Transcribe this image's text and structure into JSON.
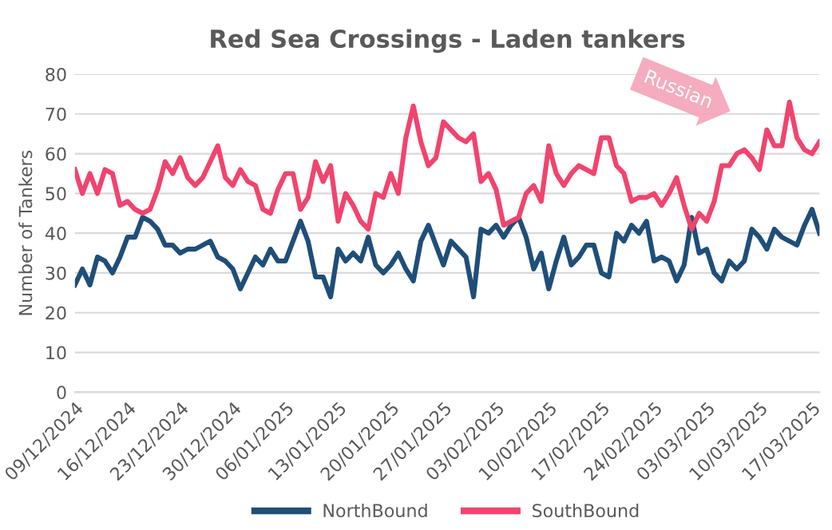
{
  "chart_data": {
    "type": "line",
    "title": "Red Sea Crossings - Laden tankers",
    "ylabel": "Number of Tankers",
    "x": [
      "2024-12-09",
      "2024-12-10",
      "2024-12-11",
      "2024-12-12",
      "2024-12-13",
      "2024-12-14",
      "2024-12-15",
      "2024-12-16",
      "2024-12-17",
      "2024-12-18",
      "2024-12-19",
      "2024-12-20",
      "2024-12-21",
      "2024-12-22",
      "2024-12-23",
      "2024-12-24",
      "2024-12-25",
      "2024-12-26",
      "2024-12-27",
      "2024-12-28",
      "2024-12-29",
      "2024-12-30",
      "2024-12-31",
      "2025-01-01",
      "2025-01-02",
      "2025-01-03",
      "2025-01-04",
      "2025-01-05",
      "2025-01-06",
      "2025-01-07",
      "2025-01-08",
      "2025-01-09",
      "2025-01-10",
      "2025-01-11",
      "2025-01-12",
      "2025-01-13",
      "2025-01-14",
      "2025-01-15",
      "2025-01-16",
      "2025-01-17",
      "2025-01-18",
      "2025-01-19",
      "2025-01-20",
      "2025-01-21",
      "2025-01-22",
      "2025-01-23",
      "2025-01-24",
      "2025-01-25",
      "2025-01-26",
      "2025-01-27",
      "2025-01-28",
      "2025-01-29",
      "2025-01-30",
      "2025-01-31",
      "2025-02-01",
      "2025-02-02",
      "2025-02-03",
      "2025-02-04",
      "2025-02-05",
      "2025-02-06",
      "2025-02-07",
      "2025-02-08",
      "2025-02-09",
      "2025-02-10",
      "2025-02-11",
      "2025-02-12",
      "2025-02-13",
      "2025-02-14",
      "2025-02-15",
      "2025-02-16",
      "2025-02-17",
      "2025-02-18",
      "2025-02-19",
      "2025-02-20",
      "2025-02-21",
      "2025-02-22",
      "2025-02-23",
      "2025-02-24",
      "2025-02-25",
      "2025-02-26",
      "2025-02-27",
      "2025-02-28",
      "2025-03-01",
      "2025-03-02",
      "2025-03-03",
      "2025-03-04",
      "2025-03-05",
      "2025-03-06",
      "2025-03-07",
      "2025-03-08",
      "2025-03-09",
      "2025-03-10",
      "2025-03-11",
      "2025-03-12",
      "2025-03-13",
      "2025-03-14",
      "2025-03-15",
      "2025-03-16",
      "2025-03-17",
      "2025-03-18"
    ],
    "series": [
      {
        "name": "NorthBound",
        "color": "#1f4e79",
        "values": [
          27,
          31,
          27,
          34,
          33,
          30,
          34,
          39,
          39,
          44,
          43,
          41,
          37,
          37,
          35,
          36,
          36,
          37,
          38,
          34,
          33,
          31,
          26,
          30,
          34,
          32,
          36,
          33,
          33,
          38,
          43,
          38,
          29,
          29,
          24,
          36,
          33,
          35,
          33,
          39,
          32,
          30,
          32,
          35,
          31,
          28,
          38,
          42,
          37,
          32,
          38,
          36,
          34,
          24,
          41,
          40,
          42,
          39,
          42,
          44,
          39,
          31,
          35,
          26,
          33,
          39,
          32,
          34,
          37,
          37,
          30,
          29,
          40,
          38,
          42,
          40,
          43,
          33,
          34,
          33,
          28,
          32,
          44,
          35,
          36,
          30,
          28,
          33,
          31,
          33,
          41,
          39,
          36,
          41,
          39,
          38,
          37,
          42,
          46,
          40
        ]
      },
      {
        "name": "SouthBound",
        "color": "#f0446e",
        "values": [
          56,
          50,
          55,
          50,
          56,
          55,
          47,
          48,
          46,
          45,
          46,
          51,
          58,
          55,
          59,
          54,
          52,
          54,
          58,
          62,
          54,
          52,
          56,
          53,
          52,
          46,
          45,
          51,
          55,
          55,
          46,
          49,
          58,
          53,
          57,
          43,
          50,
          47,
          43,
          41,
          50,
          49,
          55,
          50,
          64,
          72,
          63,
          57,
          59,
          68,
          66,
          64,
          63,
          65,
          53,
          55,
          51,
          42,
          43,
          44,
          50,
          52,
          48,
          62,
          55,
          52,
          55,
          57,
          56,
          55,
          64,
          64,
          57,
          55,
          48,
          49,
          49,
          50,
          47,
          50,
          54,
          47,
          41,
          45,
          43,
          48,
          57,
          57,
          60,
          61,
          59,
          56,
          66,
          62,
          62,
          73,
          64,
          61,
          60,
          63
        ]
      }
    ],
    "xlim": [
      "2024-12-09",
      "2025-03-18"
    ],
    "xticks": [
      {
        "value": "2024-12-09",
        "label": "09/12/2024"
      },
      {
        "value": "2024-12-16",
        "label": "16/12/2024"
      },
      {
        "value": "2024-12-23",
        "label": "23/12/2024"
      },
      {
        "value": "2024-12-30",
        "label": "30/12/2024"
      },
      {
        "value": "2025-01-06",
        "label": "06/01/2025"
      },
      {
        "value": "2025-01-13",
        "label": "13/01/2025"
      },
      {
        "value": "2025-01-20",
        "label": "20/01/2025"
      },
      {
        "value": "2025-01-27",
        "label": "27/01/2025"
      },
      {
        "value": "2025-02-03",
        "label": "03/02/2025"
      },
      {
        "value": "2025-02-10",
        "label": "10/02/2025"
      },
      {
        "value": "2025-02-17",
        "label": "17/02/2025"
      },
      {
        "value": "2025-02-24",
        "label": "24/02/2025"
      },
      {
        "value": "2025-03-03",
        "label": "03/03/2025"
      },
      {
        "value": "2025-03-10",
        "label": "10/03/2025"
      },
      {
        "value": "2025-03-17",
        "label": "17/03/2025"
      }
    ],
    "ylim": [
      0,
      80
    ],
    "yticks": [
      0,
      10,
      20,
      30,
      40,
      50,
      60,
      70,
      80
    ],
    "grid": "y",
    "legend": "bottom",
    "marker": "none",
    "line_style": "solid",
    "annotations": [
      "Russian"
    ]
  }
}
